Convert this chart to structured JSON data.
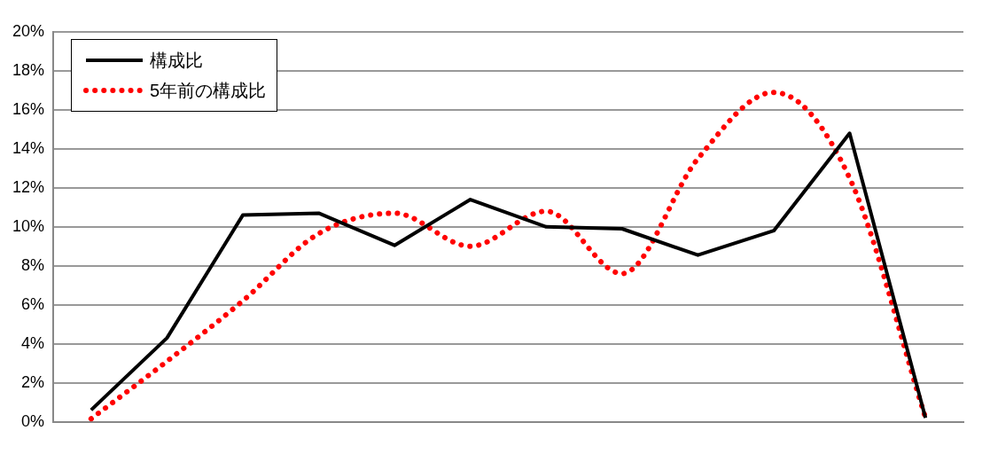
{
  "chart_data": {
    "type": "line",
    "categories": [
      null,
      null,
      null,
      null,
      null,
      null,
      null,
      null,
      null,
      null,
      null,
      null
    ],
    "series": [
      {
        "name": "構成比",
        "color": "#000000",
        "line_style": "solid",
        "values": [
          0.6,
          4.3,
          10.6,
          10.7,
          9.05,
          11.4,
          10.0,
          9.9,
          8.55,
          9.8,
          14.8,
          0.2
        ]
      },
      {
        "name": "5年前の構成比",
        "color": "#ff0000",
        "line_style": "dotted",
        "values": [
          0.15,
          3.1,
          6.2,
          9.65,
          10.7,
          9.0,
          10.8,
          7.6,
          13.5,
          16.9,
          12.5,
          0.2
        ]
      }
    ],
    "ylim": [
      0,
      20
    ],
    "yticks": [
      {
        "value": 0,
        "label": "0%"
      },
      {
        "value": 2,
        "label": "2%"
      },
      {
        "value": 4,
        "label": "4%"
      },
      {
        "value": 6,
        "label": "6%"
      },
      {
        "value": 8,
        "label": "8%"
      },
      {
        "value": 10,
        "label": "10%"
      },
      {
        "value": 12,
        "label": "12%"
      },
      {
        "value": 14,
        "label": "14%"
      },
      {
        "value": 16,
        "label": "16%"
      },
      {
        "value": 18,
        "label": "18%"
      },
      {
        "value": 20,
        "label": "20%"
      }
    ],
    "grid": "y",
    "legend": "top left",
    "marker": "none"
  }
}
